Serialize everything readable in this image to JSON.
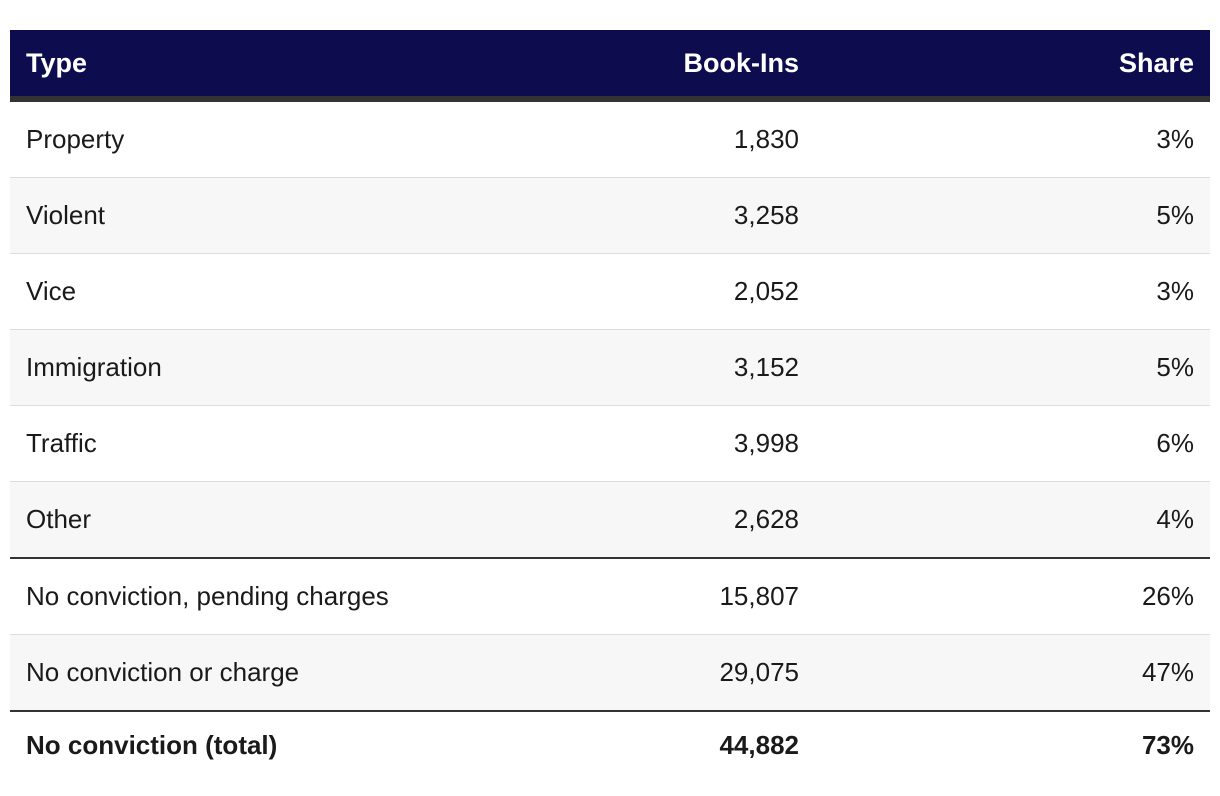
{
  "chart_data": {
    "type": "table",
    "columns": [
      "Type",
      "Book-Ins",
      "Share"
    ],
    "rows": [
      {
        "type": "Property",
        "book_ins": "1,830",
        "share": "3%"
      },
      {
        "type": "Violent",
        "book_ins": "3,258",
        "share": "5%"
      },
      {
        "type": "Vice",
        "book_ins": "2,052",
        "share": "3%"
      },
      {
        "type": "Immigration",
        "book_ins": "3,152",
        "share": "5%"
      },
      {
        "type": "Traffic",
        "book_ins": "3,998",
        "share": "6%"
      },
      {
        "type": "Other",
        "book_ins": "2,628",
        "share": "4%"
      },
      {
        "type": "No conviction, pending charges",
        "book_ins": "15,807",
        "share": "26%"
      },
      {
        "type": "No conviction or charge",
        "book_ins": "29,075",
        "share": "47%"
      }
    ],
    "total": {
      "type": "No conviction (total)",
      "book_ins": "44,882",
      "share": "73%"
    },
    "colors": {
      "header_bg": "#0d0c4e",
      "header_text": "#ffffff",
      "alt_row_bg": "#f7f7f7"
    }
  }
}
